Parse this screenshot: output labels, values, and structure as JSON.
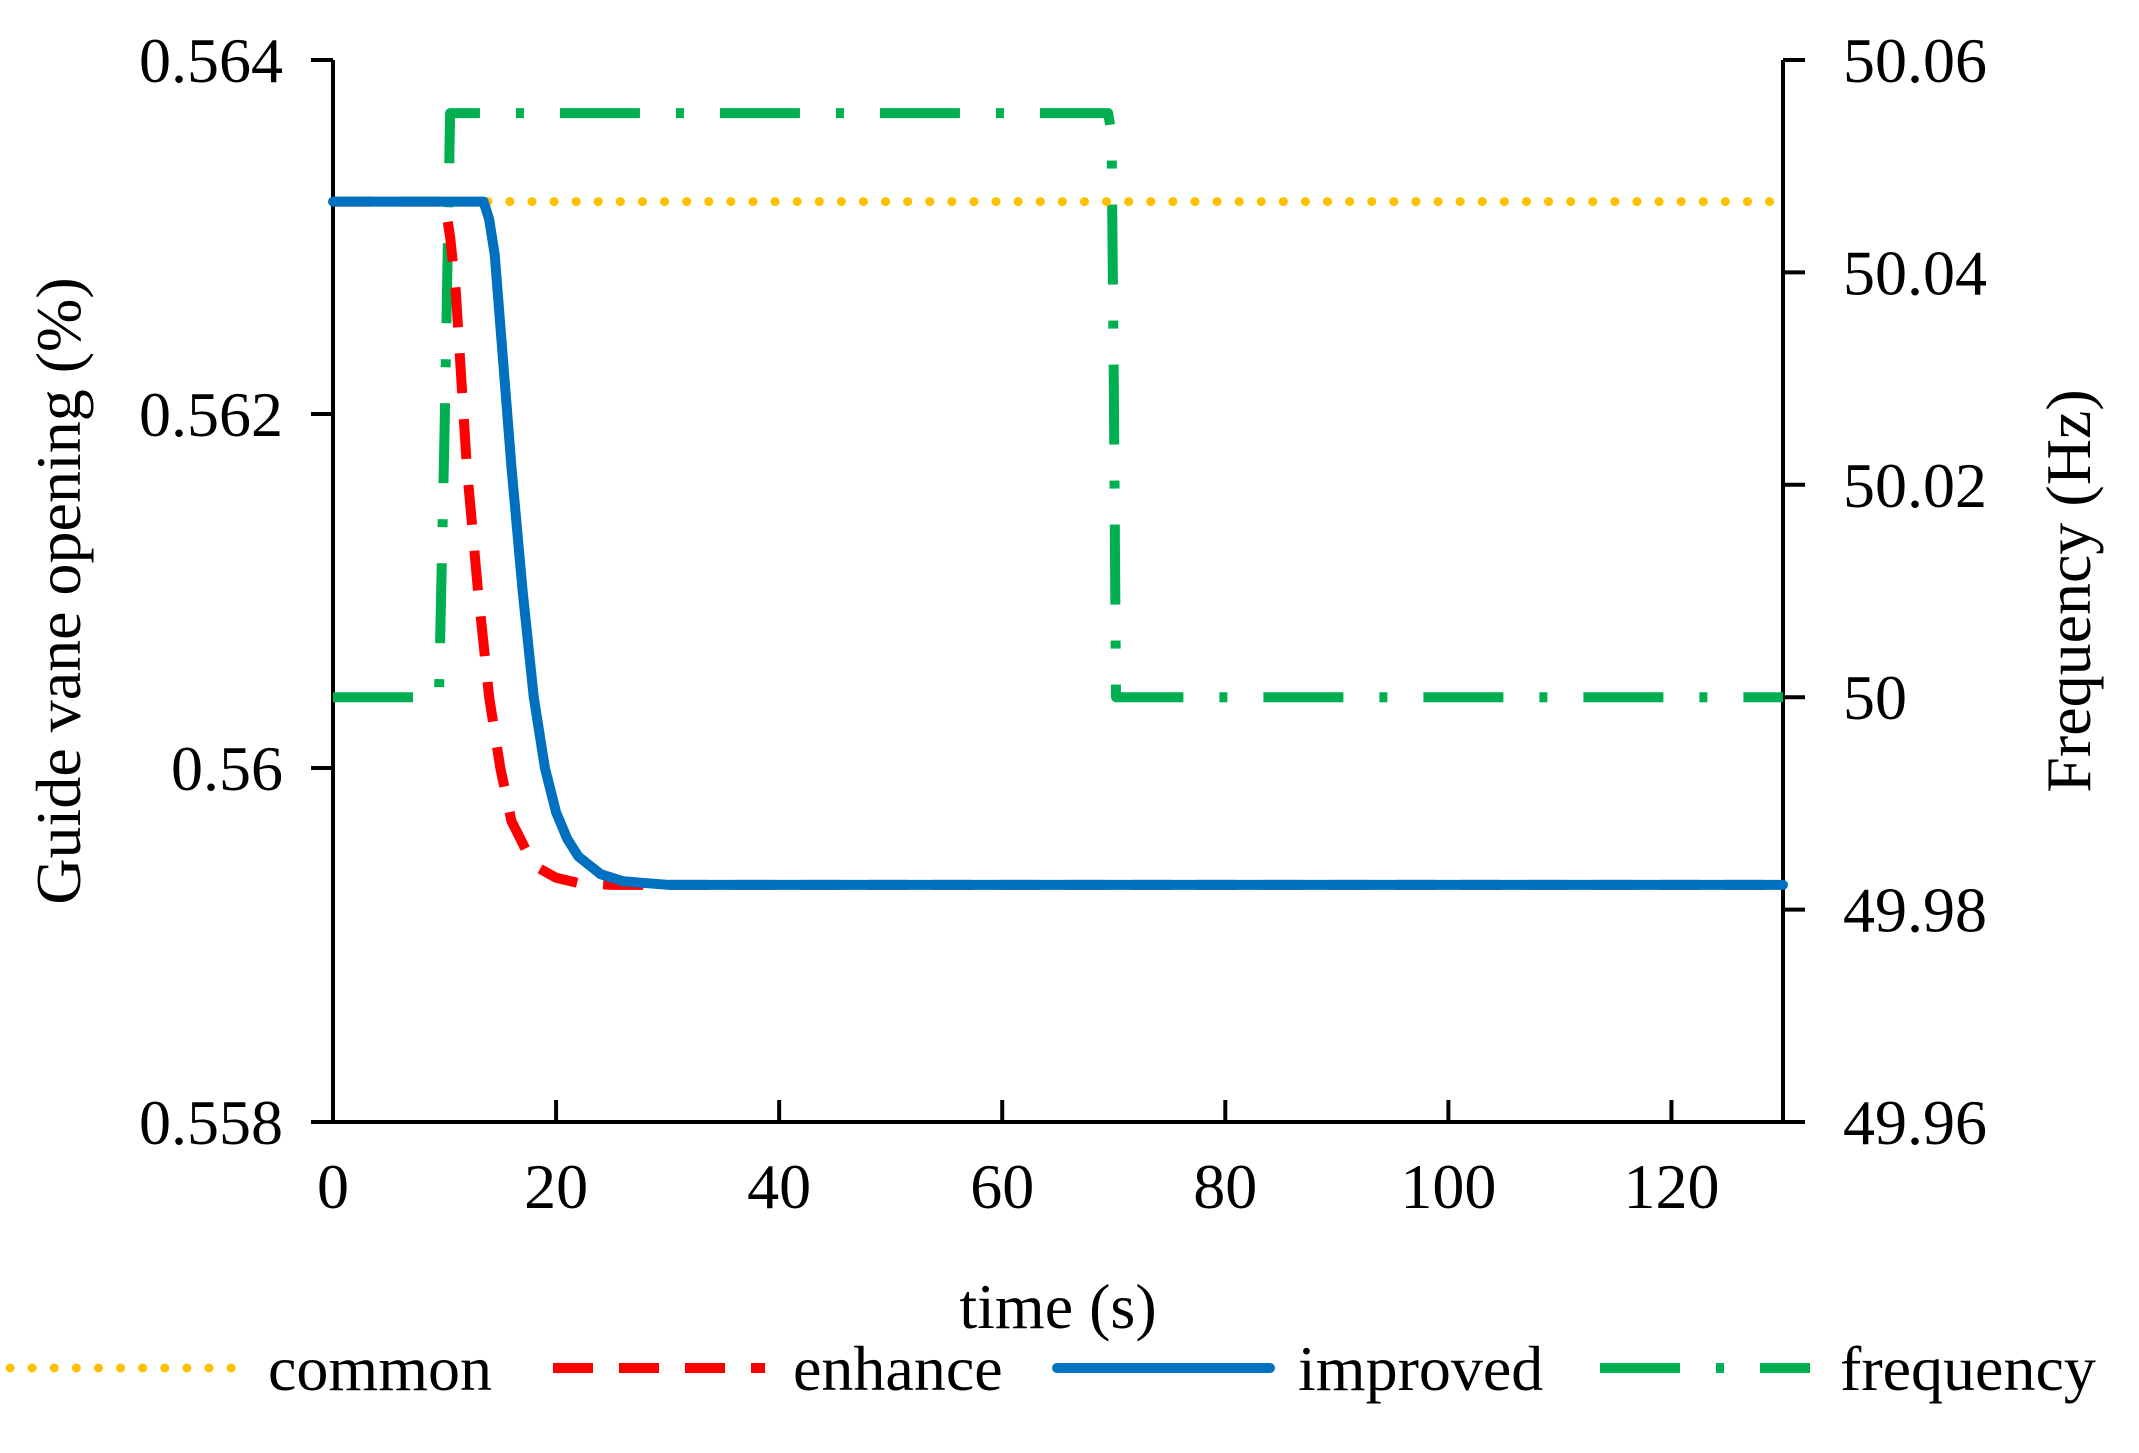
{
  "chart_data": {
    "type": "line",
    "title": "",
    "xlabel": "time (s)",
    "ylabel_left": "Guide vane opening (%)",
    "ylabel_right": "Frequency (Hz)",
    "xlim": [
      0,
      130
    ],
    "ylim_left": [
      0.558,
      0.564
    ],
    "ylim_right": [
      49.96,
      50.06
    ],
    "x_ticks": [
      "0",
      "20",
      "40",
      "60",
      "80",
      "100",
      "120"
    ],
    "y_ticks_left": [
      "0.558",
      "0.56",
      "0.562",
      "0.564"
    ],
    "y_ticks_right": [
      "49.96",
      "49.98",
      "50",
      "50.02",
      "50.04",
      "50.06"
    ],
    "grid": false,
    "legend_position": "bottom",
    "series": [
      {
        "name": "common",
        "axis": "left",
        "style": "dotted",
        "color": "#FFC000",
        "x": [
          0,
          130
        ],
        "y": [
          0.5632,
          0.5632
        ]
      },
      {
        "name": "enhance",
        "axis": "left",
        "style": "dashed",
        "color": "#FF0000",
        "x": [
          0,
          10,
          10.5,
          11,
          11.5,
          12,
          13,
          14,
          15,
          16,
          18,
          20,
          22,
          25,
          28,
          30,
          130
        ],
        "y": [
          0.5632,
          0.5632,
          0.563,
          0.5627,
          0.5622,
          0.5617,
          0.561,
          0.5604,
          0.56,
          0.5597,
          0.55945,
          0.55938,
          0.55935,
          0.55934,
          0.55934,
          0.55934,
          0.55934
        ]
      },
      {
        "name": "improved",
        "axis": "left",
        "style": "solid",
        "color": "#0070C0",
        "x": [
          0,
          13.5,
          14,
          14.5,
          15,
          16,
          17,
          18,
          19,
          20,
          21,
          22,
          24,
          26,
          28,
          30,
          35,
          130
        ],
        "y": [
          0.5632,
          0.5632,
          0.5631,
          0.5629,
          0.5625,
          0.5617,
          0.561,
          0.5604,
          0.56,
          0.55975,
          0.5596,
          0.5595,
          0.5594,
          0.55936,
          0.55935,
          0.55934,
          0.55934,
          0.55934
        ]
      },
      {
        "name": "frequency",
        "axis": "right",
        "style": "dashdot",
        "color": "#00B050",
        "x": [
          0,
          9.5,
          10,
          10.5,
          69.5,
          69.8,
          70,
          70.2,
          130
        ],
        "y": [
          50.0,
          50.0,
          50.025,
          50.055,
          50.055,
          50.053,
          50.03,
          50.0,
          50.0
        ]
      }
    ]
  }
}
